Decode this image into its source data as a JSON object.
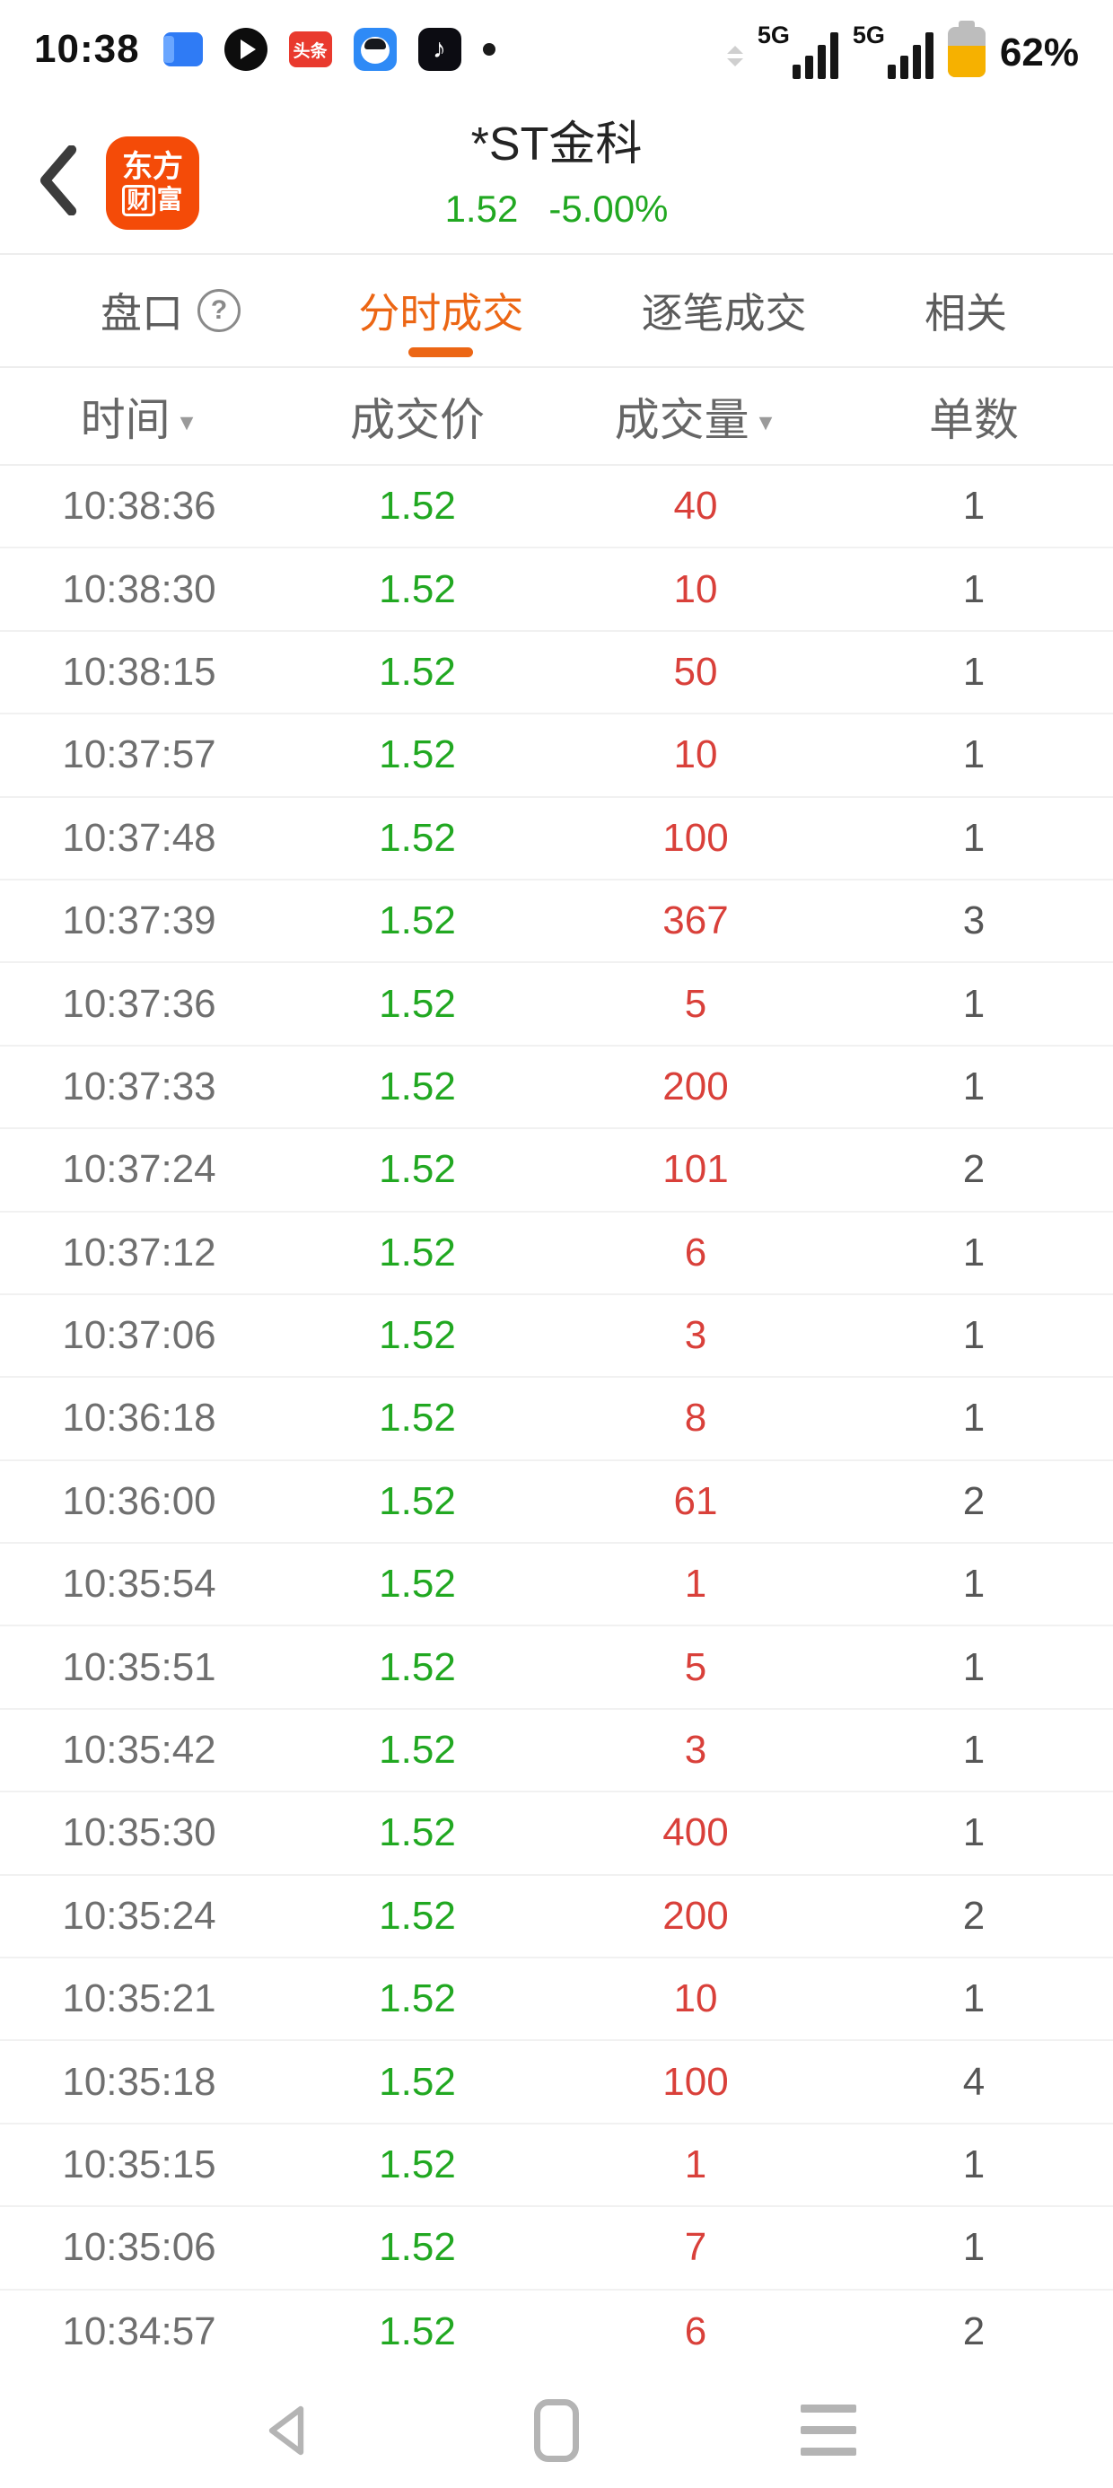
{
  "status_bar": {
    "time": "10:38",
    "app_icons": [
      {
        "name": "screen-mirror-icon"
      },
      {
        "name": "video-play-icon"
      },
      {
        "name": "toutiao-icon",
        "label": "头条"
      },
      {
        "name": "assistant-app-icon"
      },
      {
        "name": "douyin-icon",
        "glyph": "♪"
      },
      {
        "name": "notification-dot-icon"
      }
    ],
    "network": [
      {
        "tech": "5G",
        "bars": 4
      },
      {
        "tech": "5G",
        "bars": 4
      }
    ],
    "battery_percent": "62%",
    "battery_level": 62
  },
  "header": {
    "logo": {
      "line1": "东方",
      "line2_boxed": "财",
      "line2_rest": "富"
    },
    "title": "*ST金科",
    "price": "1.52",
    "change_percent": "-5.00%"
  },
  "tabs": {
    "help_glyph": "?",
    "items": [
      {
        "label": "盘口",
        "active": false
      },
      {
        "label": "分时成交",
        "active": true
      },
      {
        "label": "逐笔成交",
        "active": false
      },
      {
        "label": "相关",
        "active": false
      }
    ]
  },
  "trade_table": {
    "sort_glyph": "▼",
    "columns": [
      {
        "label": "时间",
        "sortable": true
      },
      {
        "label": "成交价",
        "sortable": false
      },
      {
        "label": "成交量",
        "sortable": true
      },
      {
        "label": "单数",
        "sortable": false
      }
    ],
    "rows": [
      {
        "time": "10:38:36",
        "price": "1.52",
        "volume": "40",
        "orders": "1"
      },
      {
        "time": "10:38:30",
        "price": "1.52",
        "volume": "10",
        "orders": "1"
      },
      {
        "time": "10:38:15",
        "price": "1.52",
        "volume": "50",
        "orders": "1"
      },
      {
        "time": "10:37:57",
        "price": "1.52",
        "volume": "10",
        "orders": "1"
      },
      {
        "time": "10:37:48",
        "price": "1.52",
        "volume": "100",
        "orders": "1"
      },
      {
        "time": "10:37:39",
        "price": "1.52",
        "volume": "367",
        "orders": "3"
      },
      {
        "time": "10:37:36",
        "price": "1.52",
        "volume": "5",
        "orders": "1"
      },
      {
        "time": "10:37:33",
        "price": "1.52",
        "volume": "200",
        "orders": "1"
      },
      {
        "time": "10:37:24",
        "price": "1.52",
        "volume": "101",
        "orders": "2"
      },
      {
        "time": "10:37:12",
        "price": "1.52",
        "volume": "6",
        "orders": "1"
      },
      {
        "time": "10:37:06",
        "price": "1.52",
        "volume": "3",
        "orders": "1"
      },
      {
        "time": "10:36:18",
        "price": "1.52",
        "volume": "8",
        "orders": "1"
      },
      {
        "time": "10:36:00",
        "price": "1.52",
        "volume": "61",
        "orders": "2"
      },
      {
        "time": "10:35:54",
        "price": "1.52",
        "volume": "1",
        "orders": "1"
      },
      {
        "time": "10:35:51",
        "price": "1.52",
        "volume": "5",
        "orders": "1"
      },
      {
        "time": "10:35:42",
        "price": "1.52",
        "volume": "3",
        "orders": "1"
      },
      {
        "time": "10:35:30",
        "price": "1.52",
        "volume": "400",
        "orders": "1"
      },
      {
        "time": "10:35:24",
        "price": "1.52",
        "volume": "200",
        "orders": "2"
      },
      {
        "time": "10:35:21",
        "price": "1.52",
        "volume": "10",
        "orders": "1"
      },
      {
        "time": "10:35:18",
        "price": "1.52",
        "volume": "100",
        "orders": "4"
      },
      {
        "time": "10:35:15",
        "price": "1.52",
        "volume": "1",
        "orders": "1"
      },
      {
        "time": "10:35:06",
        "price": "1.52",
        "volume": "7",
        "orders": "1"
      },
      {
        "time": "10:34:57",
        "price": "1.52",
        "volume": "6",
        "orders": "2"
      }
    ]
  },
  "colors": {
    "accent_orange": "#ec6614",
    "logo_orange": "#f44b08",
    "price_green": "#21a821",
    "volume_red": "#d9403a",
    "battery_orange": "#f6b100"
  }
}
